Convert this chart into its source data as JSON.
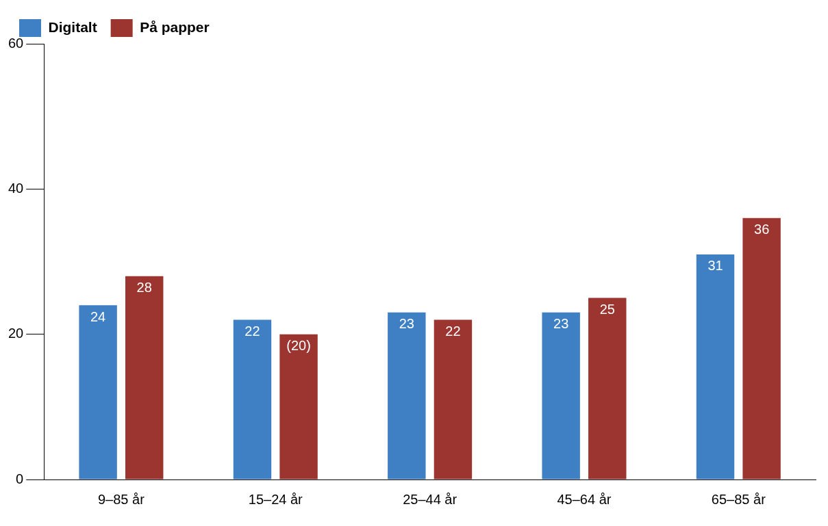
{
  "chart_data": {
    "type": "bar",
    "categories": [
      "9–85 år",
      "15–24 år",
      "25–44 år",
      "45–64 år",
      "65–85 år"
    ],
    "series": [
      {
        "name": "Digitalt",
        "color": "#3f80c4",
        "values": [
          24,
          22,
          23,
          23,
          31
        ],
        "value_labels": [
          "24",
          "22",
          "23",
          "23",
          "31"
        ]
      },
      {
        "name": "På papper",
        "color": "#9c3530",
        "values": [
          28,
          20,
          22,
          25,
          36
        ],
        "value_labels": [
          "28",
          "(20)",
          "22",
          "25",
          "36"
        ]
      }
    ],
    "ylim": [
      0,
      60
    ],
    "yticks": [
      0,
      20,
      40,
      60
    ],
    "grid": false,
    "legend": "top left"
  }
}
